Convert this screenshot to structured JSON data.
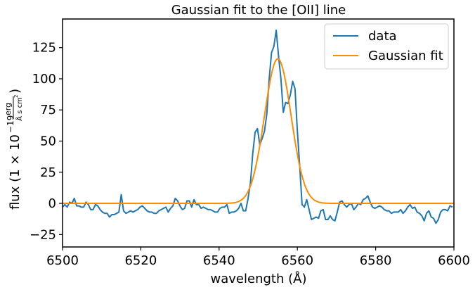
{
  "chart_data": {
    "type": "line",
    "title": "Gaussian fit to the [OII] line",
    "xlabel": "wavelength (Å)",
    "ylabel": {
      "prefix": "flux (1 × 10",
      "exponent": "−19",
      "unit_numerator": "erg",
      "unit_denominator": "Å s cm",
      "unit_denominator_exponent": "2",
      "suffix": ")"
    },
    "xlim": [
      6500,
      6600
    ],
    "ylim": [
      -35,
      148
    ],
    "xticks": [
      6500,
      6520,
      6540,
      6560,
      6580,
      6600
    ],
    "yticks": [
      -25,
      0,
      25,
      50,
      75,
      100,
      125
    ],
    "grid": false,
    "legend_position": "top-right",
    "series": [
      {
        "name": "data",
        "color": "#1f77b4",
        "x": [
          6500.0,
          6500.6,
          6501.2,
          6501.8,
          6502.4,
          6503.0,
          6503.6,
          6504.2,
          6504.8,
          6505.4,
          6506.0,
          6506.6,
          6507.2,
          6507.8,
          6508.4,
          6509.0,
          6509.6,
          6510.2,
          6510.8,
          6511.4,
          6512.0,
          6512.6,
          6513.2,
          6513.8,
          6514.4,
          6515.0,
          6515.6,
          6516.2,
          6516.8,
          6517.4,
          6518.0,
          6518.6,
          6519.2,
          6519.8,
          6520.4,
          6521.0,
          6521.6,
          6522.2,
          6522.8,
          6523.4,
          6524.0,
          6524.6,
          6525.2,
          6525.8,
          6526.4,
          6527.0,
          6527.6,
          6528.2,
          6528.8,
          6529.4,
          6530.0,
          6530.6,
          6531.2,
          6531.8,
          6532.4,
          6533.0,
          6533.6,
          6534.2,
          6534.8,
          6535.4,
          6536.0,
          6536.6,
          6537.2,
          6537.8,
          6538.4,
          6539.0,
          6539.6,
          6540.2,
          6540.8,
          6541.4,
          6542.0,
          6542.6,
          6543.2,
          6543.8,
          6544.4,
          6545.0,
          6545.6,
          6546.2,
          6546.8,
          6547.4,
          6548.0,
          6548.6,
          6549.2,
          6549.8,
          6550.4,
          6551.0,
          6551.6,
          6552.2,
          6552.8,
          6553.4,
          6554.0,
          6554.6,
          6555.2,
          6555.8,
          6556.4,
          6557.0,
          6557.6,
          6558.2,
          6558.8,
          6559.4,
          6560.0,
          6560.6,
          6561.2,
          6561.8,
          6562.4,
          6563.0,
          6563.6,
          6564.2,
          6564.8,
          6565.4,
          6566.0,
          6566.6,
          6567.2,
          6567.8,
          6568.4,
          6569.0,
          6569.6,
          6570.2,
          6570.8,
          6571.4,
          6572.0,
          6572.6,
          6573.2,
          6573.8,
          6574.4,
          6575.0,
          6575.6,
          6576.2,
          6576.8,
          6577.4,
          6578.0,
          6578.6,
          6579.2,
          6579.8,
          6580.4,
          6581.0,
          6581.6,
          6582.2,
          6582.8,
          6583.4,
          6584.0,
          6584.6,
          6585.2,
          6585.8,
          6586.4,
          6587.0,
          6587.6,
          6588.2,
          6588.8,
          6589.4,
          6590.0,
          6590.6,
          6591.2,
          6591.8,
          6592.4,
          6593.0,
          6593.6,
          6594.2,
          6594.8,
          6595.4,
          6596.0,
          6596.6,
          6597.2,
          6597.8,
          6598.4,
          6599.0,
          6599.6
        ],
        "y": [
          -3,
          -1,
          -3,
          1,
          0,
          4,
          -2,
          -2,
          -3,
          -3,
          1,
          -1,
          -5,
          -5,
          -1,
          -2,
          -5,
          -7,
          -8,
          -8,
          -11,
          -9,
          -9,
          -8,
          -7,
          7,
          -6,
          -8,
          -7,
          -6,
          -7,
          -6,
          -5,
          -3,
          -2,
          -4,
          -6,
          -7,
          -7,
          -8,
          -8,
          -6,
          -5,
          -4,
          -3,
          -7,
          -4,
          -2,
          4,
          2,
          -2,
          -5,
          -4,
          2,
          2,
          -3,
          3,
          -1,
          -1,
          -4,
          -3,
          -4,
          -5,
          -5,
          -6,
          -7,
          -7,
          -4,
          -3,
          -3,
          -1,
          -8,
          -7,
          -7,
          -6,
          -4,
          0,
          -6,
          -6,
          4,
          16,
          40,
          57,
          60,
          47,
          52,
          58,
          72,
          100,
          121,
          126,
          139,
          118,
          100,
          73,
          81,
          80,
          87,
          98,
          92,
          58,
          30,
          -1,
          -3,
          3,
          -5,
          -13,
          -12,
          -11,
          -12,
          -6,
          -5,
          -13,
          -13,
          -10,
          -13,
          -14,
          -7,
          1,
          2,
          -1,
          -3,
          -1,
          0,
          -5,
          -3,
          0,
          -1,
          3,
          4,
          6,
          1,
          -3,
          -4,
          -3,
          -2,
          -3,
          -5,
          -6,
          -6,
          -8,
          -7,
          -7,
          -7,
          -5,
          -8,
          -6,
          -3,
          -1,
          -4,
          -3,
          -7,
          -8,
          -10,
          -14,
          -8,
          -6,
          -11,
          -12,
          -16,
          -13,
          -7,
          -5,
          -5,
          -6,
          -2,
          -3
        ]
      },
      {
        "name": "Gaussian fit",
        "color": "#ff8c00",
        "model": "gaussian",
        "amplitude": 116,
        "center": 6555.0,
        "sigma": 3.4,
        "baseline": 0
      }
    ]
  }
}
